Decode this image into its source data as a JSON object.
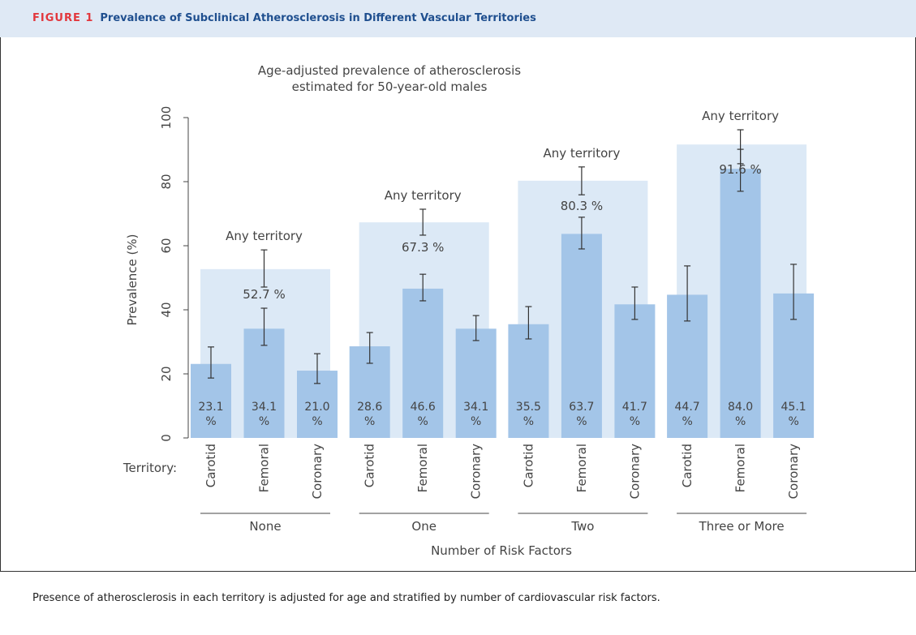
{
  "header": {
    "label": "FIGURE 1",
    "title": "Prevalence of Subclinical Atherosclerosis in Different Vascular Territories"
  },
  "chart_data": {
    "type": "grouped-bar",
    "title": [
      "Age-adjusted prevalence of atherosclerosis",
      "estimated for 50-year-old males"
    ],
    "y_label": "Prevalence (%)",
    "x_label": "Number of Risk Factors",
    "row_label": "Territory:",
    "categories": [
      "None",
      "One",
      "Two",
      "Three or More"
    ],
    "ylim": [
      0,
      100
    ],
    "yticks": [
      0,
      20,
      40,
      60,
      80,
      100
    ],
    "series": [
      {
        "name": "Carotid",
        "color": "#a3c5e8",
        "values": [
          23.1,
          28.6,
          35.5,
          44.7
        ],
        "value_labels": [
          "23.1 %",
          "28.6 %",
          "35.5 %",
          "44.7 %"
        ],
        "ci_low": [
          18.7,
          23.3,
          30.9,
          36.5
        ],
        "ci_high": [
          28.4,
          32.9,
          41.0,
          53.7
        ]
      },
      {
        "name": "Femoral",
        "color": "#a3c5e8",
        "values": [
          34.1,
          46.6,
          63.7,
          84.0
        ],
        "value_labels": [
          "34.1 %",
          "46.6 %",
          "63.7 %",
          "84.0 %"
        ],
        "ci_low": [
          28.9,
          42.8,
          59.0,
          77.0
        ],
        "ci_high": [
          40.5,
          51.1,
          68.9,
          90.1
        ]
      },
      {
        "name": "Coronary",
        "color": "#a3c5e8",
        "values": [
          21.0,
          34.1,
          41.7,
          45.1
        ],
        "value_labels": [
          "21.0 %",
          "34.1 %",
          "41.7 %",
          "45.1 %"
        ],
        "ci_low": [
          17.0,
          30.4,
          37.0,
          37.0
        ],
        "ci_high": [
          26.3,
          38.2,
          47.1,
          54.2
        ]
      },
      {
        "name": "Any territory",
        "color": "#dce9f6",
        "values": [
          52.7,
          67.3,
          80.3,
          91.6
        ],
        "value_labels": [
          "52.7 %",
          "67.3 %",
          "80.3 %",
          "91.6 %"
        ],
        "ci_low": [
          47.1,
          63.3,
          75.9,
          85.6
        ],
        "ci_high": [
          58.7,
          71.4,
          84.6,
          96.2
        ]
      }
    ]
  },
  "caption": "Presence of atherosclerosis in each territory is adjusted for age and stratified by number of cardiovascular risk factors."
}
